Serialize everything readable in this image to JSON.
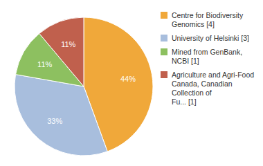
{
  "chart_data": {
    "type": "pie",
    "categories": [
      "Centre for Biodiversity\nGenomics [4]",
      "University of Helsinki [3]",
      "Mined from GenBank, NCBI [1]",
      "Agriculture and Agri-Food\nCanada, Canadian Collection of\nFu... [1]"
    ],
    "values": [
      44,
      33,
      11,
      11
    ],
    "value_labels": [
      "44%",
      "33%",
      "11%",
      "11%"
    ],
    "colors": [
      "#F0A83A",
      "#A8BEDD",
      "#8DC060",
      "#C0604D"
    ],
    "data_labels": true,
    "legend": "right"
  }
}
